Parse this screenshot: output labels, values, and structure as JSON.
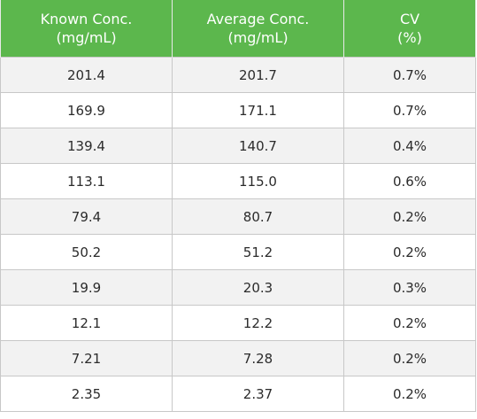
{
  "table": {
    "headers": [
      [
        "Known Conc.",
        "(mg/mL)"
      ],
      [
        "Average Conc.",
        "(mg/mL)"
      ],
      [
        "CV",
        "(%)"
      ]
    ],
    "rows": [
      [
        "201.4",
        "201.7",
        "0.7%"
      ],
      [
        "169.9",
        "171.1",
        "0.7%"
      ],
      [
        "139.4",
        "140.7",
        "0.4%"
      ],
      [
        "113.1",
        "115.0",
        "0.6%"
      ],
      [
        "79.4",
        "80.7",
        "0.2%"
      ],
      [
        "50.2",
        "51.2",
        "0.2%"
      ],
      [
        "19.9",
        "20.3",
        "0.3%"
      ],
      [
        "12.1",
        "12.2",
        "0.2%"
      ],
      [
        "7.21",
        "7.28",
        "0.2%"
      ],
      [
        "2.35",
        "2.37",
        "0.2%"
      ]
    ]
  },
  "colors": {
    "header_bg": "#5cb74d",
    "header_text": "#ffffff",
    "row_odd_bg": "#f2f2f2",
    "row_even_bg": "#ffffff",
    "border": "#c8c8c8"
  }
}
